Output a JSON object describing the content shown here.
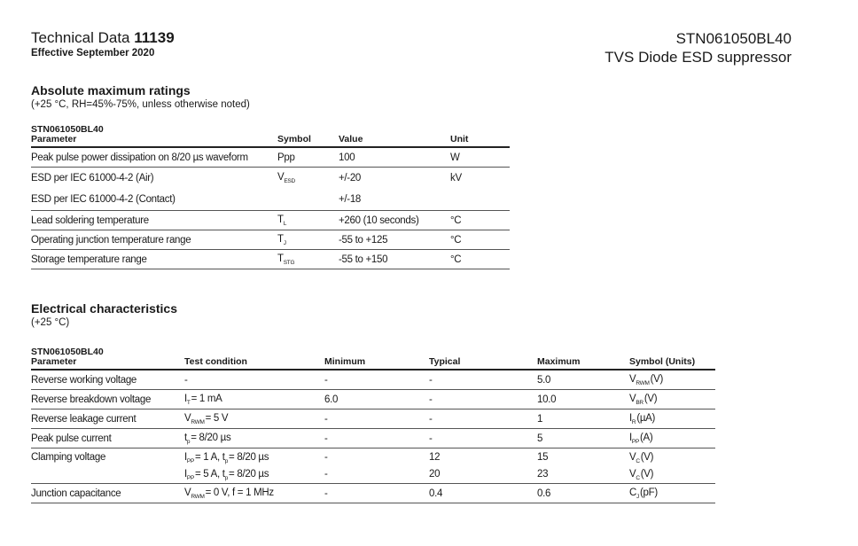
{
  "header": {
    "doc_type": "Technical Data",
    "doc_number": "11139",
    "effective": "Effective September 2020",
    "part_number": "STN061050BL40",
    "product": "TVS Diode ESD suppressor"
  },
  "abs_max": {
    "title": "Absolute maximum ratings",
    "note": "(+25 °C, RH=45%-75%, unless otherwise noted)",
    "table_title": "STN061050BL40",
    "columns": [
      "Parameter",
      "Symbol",
      "Value",
      "Unit"
    ],
    "rows": [
      [
        [
          {
            "t": "Peak pulse power dissipation on 8/20 µs waveform"
          }
        ],
        [
          {
            "t": "Ppp"
          }
        ],
        [
          {
            "t": "100"
          }
        ],
        [
          {
            "t": "W"
          }
        ]
      ],
      [
        [
          {
            "t": "ESD per IEC 61000-4-2 (Air)"
          }
        ],
        [
          {
            "t": "V"
          },
          {
            "t": "ESD",
            "sub": true
          }
        ],
        [
          {
            "t": "+/-20"
          }
        ],
        [
          {
            "t": "kV"
          }
        ]
      ],
      [
        [
          {
            "t": "ESD per IEC 61000-4-2 (Contact)"
          }
        ],
        [],
        [
          {
            "t": "+/-18"
          }
        ],
        []
      ],
      [
        [
          {
            "t": "Lead soldering temperature"
          }
        ],
        [
          {
            "t": "T"
          },
          {
            "t": "L",
            "sub": true
          }
        ],
        [
          {
            "t": "+260 (10 seconds)"
          }
        ],
        [
          {
            "t": "°C"
          }
        ]
      ],
      [
        [
          {
            "t": "Operating junction temperature range"
          }
        ],
        [
          {
            "t": "T"
          },
          {
            "t": "J",
            "sub": true
          }
        ],
        [
          {
            "t": "-55 to +125"
          }
        ],
        [
          {
            "t": "°C"
          }
        ]
      ],
      [
        [
          {
            "t": "Storage temperature range"
          }
        ],
        [
          {
            "t": "T"
          },
          {
            "t": "STG",
            "sub": true
          }
        ],
        [
          {
            "t": "-55 to +150"
          }
        ],
        [
          {
            "t": "°C"
          }
        ]
      ]
    ]
  },
  "electrical": {
    "title": "Electrical characteristics",
    "note": "(+25 °C)",
    "table_title": "STN061050BL40",
    "columns": [
      "Parameter",
      "Test condition",
      "Minimum",
      "Typical",
      "Maximum",
      "Symbol (Units)"
    ],
    "rows": [
      [
        [
          [
            {
              "t": "Reverse working voltage"
            }
          ]
        ],
        [
          [
            {
              "t": "-"
            }
          ]
        ],
        [
          [
            {
              "t": "-"
            }
          ]
        ],
        [
          [
            {
              "t": "-"
            }
          ]
        ],
        [
          [
            {
              "t": "5.0"
            }
          ]
        ],
        [
          [
            {
              "t": "V"
            },
            {
              "t": "RWM",
              "sub": true
            },
            {
              "t": "(V)"
            }
          ]
        ]
      ],
      [
        [
          [
            {
              "t": "Reverse breakdown voltage"
            }
          ]
        ],
        [
          [
            {
              "t": "I"
            },
            {
              "t": "T",
              "sub": true
            },
            {
              "t": "= 1 mA"
            }
          ]
        ],
        [
          [
            {
              "t": "6.0"
            }
          ]
        ],
        [
          [
            {
              "t": "-"
            }
          ]
        ],
        [
          [
            {
              "t": "10.0"
            }
          ]
        ],
        [
          [
            {
              "t": "V"
            },
            {
              "t": "BR",
              "sub": true
            },
            {
              "t": "(V)"
            }
          ]
        ]
      ],
      [
        [
          [
            {
              "t": "Reverse leakage current"
            }
          ]
        ],
        [
          [
            {
              "t": "V"
            },
            {
              "t": "RWM",
              "sub": true
            },
            {
              "t": "= 5 V"
            }
          ]
        ],
        [
          [
            {
              "t": "-"
            }
          ]
        ],
        [
          [
            {
              "t": "-"
            }
          ]
        ],
        [
          [
            {
              "t": "1"
            }
          ]
        ],
        [
          [
            {
              "t": "I"
            },
            {
              "t": "R",
              "sub": true
            },
            {
              "t": "(µA)"
            }
          ]
        ]
      ],
      [
        [
          [
            {
              "t": "Peak pulse current"
            }
          ]
        ],
        [
          [
            {
              "t": "t"
            },
            {
              "t": "p",
              "sub": true
            },
            {
              "t": "= 8/20 µs"
            }
          ]
        ],
        [
          [
            {
              "t": "-"
            }
          ]
        ],
        [
          [
            {
              "t": "-"
            }
          ]
        ],
        [
          [
            {
              "t": "5"
            }
          ]
        ],
        [
          [
            {
              "t": "I"
            },
            {
              "t": "PP",
              "sub": true
            },
            {
              "t": "(A)"
            }
          ]
        ]
      ],
      [
        [
          [
            {
              "t": "Clamping voltage"
            }
          ],
          []
        ],
        [
          [
            {
              "t": "I"
            },
            {
              "t": "PP",
              "sub": true
            },
            {
              "t": "= 1 A, t"
            },
            {
              "t": "p",
              "sub": true
            },
            {
              "t": "= 8/20 µs"
            }
          ],
          [
            {
              "t": "I"
            },
            {
              "t": "PP",
              "sub": true
            },
            {
              "t": "= 5 A, t"
            },
            {
              "t": "p",
              "sub": true
            },
            {
              "t": "= 8/20 µs"
            }
          ]
        ],
        [
          [
            {
              "t": "-"
            }
          ],
          [
            {
              "t": "-"
            }
          ]
        ],
        [
          [
            {
              "t": "12"
            }
          ],
          [
            {
              "t": "20"
            }
          ]
        ],
        [
          [
            {
              "t": "15"
            }
          ],
          [
            {
              "t": "23"
            }
          ]
        ],
        [
          [
            {
              "t": "V"
            },
            {
              "t": "C",
              "sub": true
            },
            {
              "t": "(V)"
            }
          ],
          [
            {
              "t": "V"
            },
            {
              "t": "C",
              "sub": true
            },
            {
              "t": "(V)"
            }
          ]
        ]
      ],
      [
        [
          [
            {
              "t": "Junction capacitance"
            }
          ]
        ],
        [
          [
            {
              "t": "V"
            },
            {
              "t": "RWM",
              "sub": true
            },
            {
              "t": "= 0 V, f = 1 MHz"
            }
          ]
        ],
        [
          [
            {
              "t": "-"
            }
          ]
        ],
        [
          [
            {
              "t": "0.4"
            }
          ]
        ],
        [
          [
            {
              "t": "0.6"
            }
          ]
        ],
        [
          [
            {
              "t": "C"
            },
            {
              "t": "J",
              "sub": true
            },
            {
              "t": "(pF)"
            }
          ]
        ]
      ]
    ]
  }
}
